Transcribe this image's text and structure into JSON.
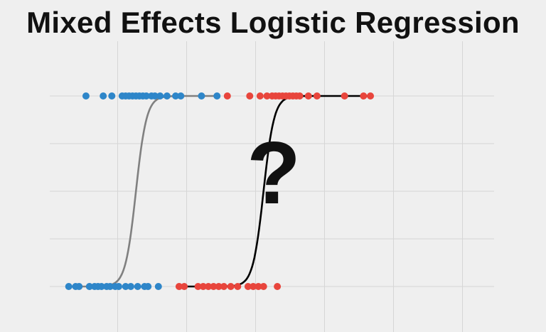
{
  "title": "Mixed Effects Logistic Regression",
  "annotation": "?",
  "colors": {
    "background": "#efefef",
    "grid": "#d6d6d6",
    "text": "#111111"
  },
  "chart_data": {
    "type": "scatter",
    "title": "Mixed Effects Logistic Regression",
    "xlabel": "",
    "ylabel": "",
    "xlim": [
      0,
      10
    ],
    "ylim": [
      0,
      1
    ],
    "grid": true,
    "ticks_visible": false,
    "series": [
      {
        "color": "#2e86c9",
        "curve_color": "#808080",
        "curve": {
          "midpoint": 2.5,
          "slope": 6.5
        },
        "points_y0": [
          0.55,
          0.75,
          0.85,
          1.15,
          1.3,
          1.4,
          1.5,
          1.65,
          1.75,
          1.9,
          2.0,
          2.2,
          2.35,
          2.55,
          2.75,
          2.85,
          3.15
        ],
        "points_y1": [
          1.05,
          1.55,
          1.8,
          2.1,
          2.2,
          2.3,
          2.4,
          2.5,
          2.6,
          2.7,
          2.8,
          2.95,
          3.05,
          3.2,
          3.4,
          3.65,
          3.8,
          4.4,
          4.85
        ]
      },
      {
        "color": "#e8453c",
        "curve_color": "#000000",
        "curve": {
          "midpoint": 6.2,
          "slope": 6.5
        },
        "points_y0": [
          3.75,
          3.9,
          4.3,
          4.45,
          4.6,
          4.75,
          4.9,
          5.05,
          5.25,
          5.45,
          5.75,
          5.9,
          6.05,
          6.2,
          6.6
        ],
        "points_y1": [
          5.15,
          5.8,
          6.1,
          6.3,
          6.45,
          6.55,
          6.65,
          6.75,
          6.85,
          6.95,
          7.05,
          7.15,
          7.25,
          7.5,
          7.75,
          8.55,
          9.1,
          9.3
        ]
      }
    ]
  }
}
